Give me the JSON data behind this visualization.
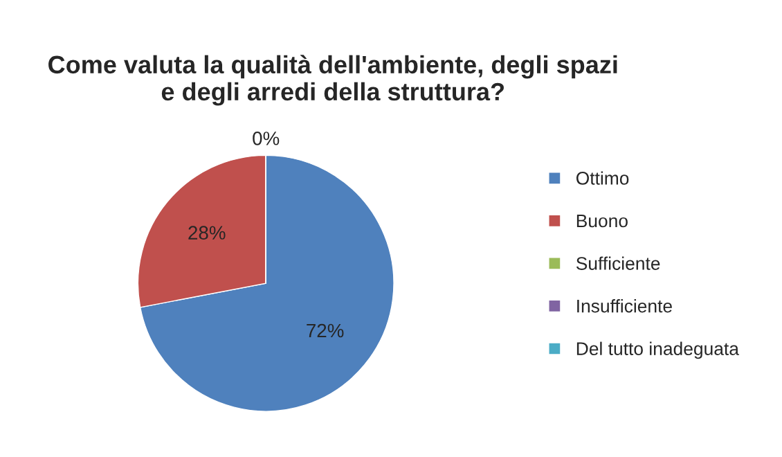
{
  "chart_data": {
    "type": "pie",
    "title": "Come valuta la qualità dell'ambiente, degli spazi\ne degli arredi della struttura?",
    "categories": [
      "Ottimo",
      "Buono",
      "Sufficiente",
      "Insufficiente",
      "Del tutto inadeguata"
    ],
    "values": [
      72,
      28,
      0,
      0,
      0
    ],
    "value_labels": [
      "72%",
      "28%",
      "0%",
      null,
      null
    ],
    "colors": [
      "#4f81bd",
      "#c0504d",
      "#9bbb59",
      "#8064a2",
      "#4bacc6"
    ],
    "legend": "right"
  }
}
